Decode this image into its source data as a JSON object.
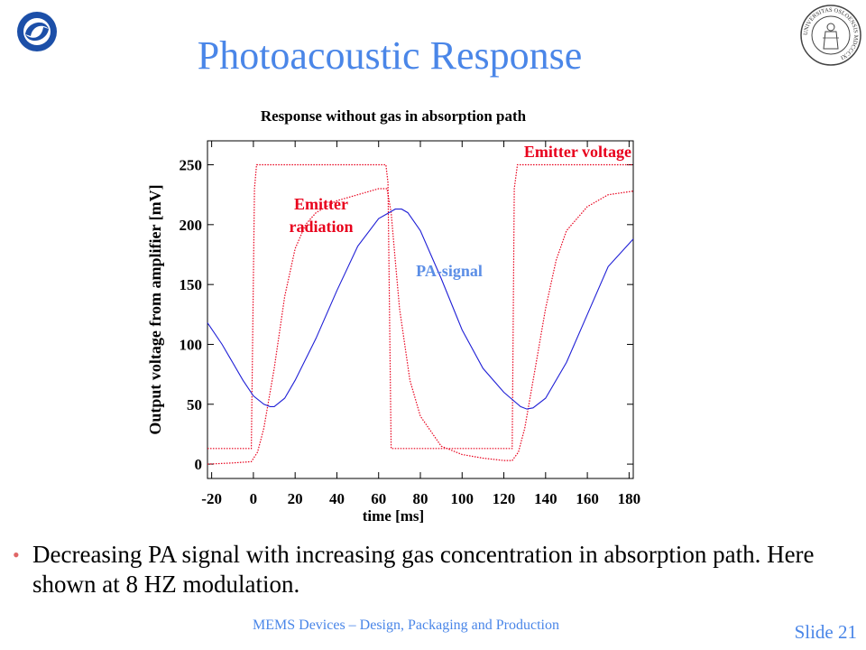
{
  "slide": {
    "title": "Photoacoustic Response",
    "bullet": "Decreasing PA signal with increasing gas concentration in absorption path. Here shown at 8 HZ modulation.",
    "footer": "MEMS Devices – Design, Packaging and Production",
    "slide_number": "Slide 21",
    "logo_left_icon": "institute-logo-icon",
    "logo_right_icon": "university-seal-icon",
    "seal_text": "UNIVERSITAS OSLOENSIS MDCCCXI"
  },
  "colors": {
    "title": "#4a86e8",
    "red": "#e8001c",
    "blue": "#1f1fd6",
    "pa_label": "#5b8ee6"
  },
  "chart_data": {
    "type": "line",
    "title": "Response without gas in absorption path",
    "xlabel": "time [ms]",
    "ylabel": "Output voltage from amplifier [mV]",
    "xlim": [
      -22,
      182
    ],
    "ylim": [
      -12,
      270
    ],
    "x_ticks": [
      -20,
      0,
      20,
      40,
      60,
      80,
      100,
      120,
      140,
      160,
      180
    ],
    "y_ticks": [
      0,
      50,
      100,
      150,
      200,
      250
    ],
    "grid": false,
    "annotations": [
      {
        "text": "Emitter voltage",
        "series": "Emitter voltage"
      },
      {
        "text": "Emitter\nradiation",
        "series": "Emitter radiation"
      },
      {
        "text": "PA-signal",
        "series": "PA-signal"
      }
    ],
    "series": [
      {
        "name": "Emitter voltage",
        "color": "#e8001c",
        "style": "dotted",
        "x": [
          -22,
          -1,
          0.5,
          1.5,
          63.5,
          64.5,
          66,
          124,
          125,
          126.5,
          182
        ],
        "y": [
          13,
          13,
          230,
          250,
          250,
          235,
          13,
          13,
          230,
          250,
          250
        ]
      },
      {
        "name": "Emitter radiation",
        "color": "#e8001c",
        "style": "dotted",
        "x": [
          -22,
          -10,
          -1,
          2,
          5,
          10,
          15,
          20,
          25,
          30,
          40,
          50,
          60,
          64,
          66,
          68,
          70,
          75,
          80,
          90,
          100,
          110,
          120,
          124,
          127,
          130,
          135,
          140,
          145,
          150,
          160,
          170,
          182
        ],
        "y": [
          0,
          1,
          2,
          10,
          30,
          80,
          140,
          180,
          200,
          210,
          220,
          225,
          230,
          230,
          210,
          170,
          130,
          70,
          40,
          15,
          8,
          5,
          3,
          3,
          10,
          30,
          80,
          130,
          170,
          195,
          215,
          225,
          228
        ]
      },
      {
        "name": "PA-signal",
        "color": "#1f1fd6",
        "style": "solid",
        "x": [
          -22,
          -15,
          -10,
          -5,
          0,
          5,
          8,
          10,
          15,
          20,
          30,
          40,
          50,
          60,
          68,
          71,
          74,
          80,
          90,
          100,
          110,
          120,
          128,
          131,
          134,
          140,
          150,
          160,
          170,
          182
        ],
        "y": [
          118,
          100,
          85,
          70,
          57,
          50,
          48,
          48,
          55,
          70,
          105,
          145,
          182,
          205,
          213,
          213,
          210,
          195,
          155,
          112,
          80,
          60,
          48,
          46,
          47,
          55,
          85,
          125,
          165,
          188
        ]
      }
    ]
  }
}
